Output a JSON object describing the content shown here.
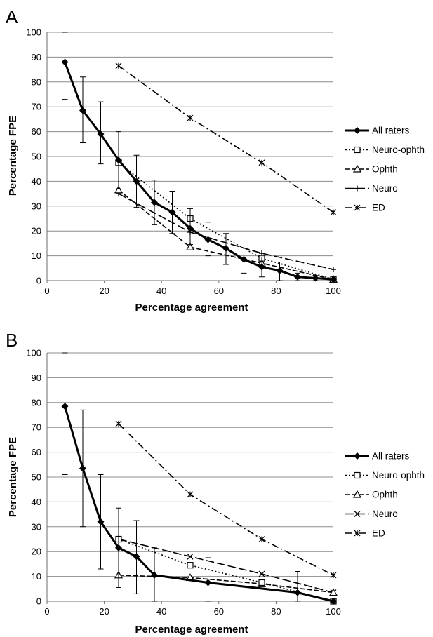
{
  "chart_data": [
    {
      "panel": "A",
      "type": "line",
      "xlabel": "Percentage agreement",
      "ylabel": "Percentage FPE",
      "xlim": [
        0,
        100
      ],
      "ylim": [
        0,
        100
      ],
      "xticks": [
        0,
        20,
        40,
        60,
        80,
        100
      ],
      "yticks": [
        0,
        10,
        20,
        30,
        40,
        50,
        60,
        70,
        80,
        90,
        100
      ],
      "grid": "horizontal",
      "legend_position": "right",
      "series": [
        {
          "name": "All raters",
          "style": "solid-thick",
          "marker": "diamond",
          "x": [
            6.25,
            12.5,
            18.75,
            25,
            31.25,
            37.5,
            43.75,
            50,
            56.25,
            62.5,
            68.75,
            75,
            81.25,
            87.5,
            93.75,
            100
          ],
          "y": [
            88,
            68.5,
            59,
            48.5,
            40,
            31.5,
            27.5,
            21,
            16.5,
            13,
            8.5,
            5.5,
            4,
            1.5,
            1,
            0.5
          ],
          "err_low": [
            73,
            55.5,
            47,
            37,
            29.5,
            22.5,
            19,
            14.5,
            10,
            6.5,
            3,
            1.5,
            0,
            0,
            0,
            0
          ],
          "err_high": [
            100,
            82,
            72,
            60,
            50.5,
            40.5,
            36,
            29,
            23.5,
            19,
            14,
            9.5,
            7.5,
            3,
            2,
            1
          ]
        },
        {
          "name": "Neuro-ophth",
          "style": "dotted",
          "marker": "square",
          "x": [
            25,
            50,
            75,
            100
          ],
          "y": [
            47.5,
            25,
            9,
            0.5
          ]
        },
        {
          "name": "Ophth",
          "style": "dashed",
          "marker": "triangle",
          "x": [
            25,
            50,
            75,
            100
          ],
          "y": [
            36.5,
            13.5,
            7,
            0.5
          ]
        },
        {
          "name": "Neuro",
          "style": "longdash",
          "marker": "star",
          "x": [
            25,
            50,
            75,
            100
          ],
          "y": [
            35,
            19.5,
            11,
            4.5
          ]
        },
        {
          "name": "ED",
          "style": "dashdot",
          "marker": "asterisk",
          "x": [
            25,
            50,
            75,
            100
          ],
          "y": [
            86.5,
            65.5,
            47.5,
            27.5
          ]
        }
      ]
    },
    {
      "panel": "B",
      "type": "line",
      "xlabel": "Percentage agreement",
      "ylabel": "Percentage FPE",
      "xlim": [
        0,
        100
      ],
      "ylim": [
        0,
        100
      ],
      "xticks": [
        0,
        20,
        40,
        60,
        80,
        100
      ],
      "yticks": [
        0,
        10,
        20,
        30,
        40,
        50,
        60,
        70,
        80,
        90,
        100
      ],
      "grid": "horizontal",
      "legend_position": "right",
      "series": [
        {
          "name": "All raters",
          "style": "solid-thick",
          "marker": "diamond",
          "x": [
            6.25,
            12.5,
            18.75,
            25,
            31.25,
            37.5,
            56.25,
            87.5,
            100
          ],
          "y": [
            78.5,
            53.5,
            32,
            21.5,
            18,
            10.5,
            7.5,
            3.5,
            0
          ],
          "err_low": [
            51,
            30,
            13,
            5.5,
            3,
            0,
            0,
            0,
            0
          ],
          "err_high": [
            100,
            77,
            51,
            37.5,
            32.5,
            21.5,
            17.5,
            12,
            0
          ]
        },
        {
          "name": "Neuro-ophth",
          "style": "dotted",
          "marker": "square",
          "x": [
            25,
            50,
            75,
            100
          ],
          "y": [
            25,
            14.5,
            7.5,
            0
          ]
        },
        {
          "name": "Ophth",
          "style": "dashed",
          "marker": "triangle",
          "x": [
            25,
            50,
            75,
            100
          ],
          "y": [
            10.5,
            9.5,
            7,
            3.5
          ]
        },
        {
          "name": "Neuro",
          "style": "longdash",
          "marker": "x",
          "x": [
            25,
            50,
            75,
            100
          ],
          "y": [
            25,
            18,
            11,
            3.5
          ]
        },
        {
          "name": "ED",
          "style": "dashdot",
          "marker": "asterisk",
          "x": [
            25,
            50,
            75,
            100
          ],
          "y": [
            71.5,
            43,
            25,
            10.5
          ]
        }
      ]
    }
  ]
}
